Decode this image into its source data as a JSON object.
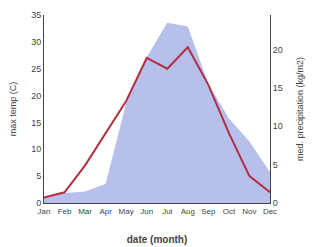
{
  "chart_data": {
    "type": "line",
    "xlabel": "date (month)",
    "ylabel": "max temp (C)",
    "y2label": "med. precipitation (kg/m2)",
    "categories": [
      "Jan",
      "Feb",
      "Mar",
      "Apr",
      "May",
      "Jun",
      "Jul",
      "Aug",
      "Sep",
      "Oct",
      "Nov",
      "Dec"
    ],
    "series": [
      {
        "type": "area",
        "axis": "y2",
        "color": "#aab4e8",
        "values": [
          0.7,
          1.3,
          1.5,
          2.5,
          13.0,
          19.0,
          23.5,
          23.0,
          15.5,
          11.0,
          8.0,
          4.0
        ]
      },
      {
        "type": "line",
        "color": "#b03040",
        "values": [
          1,
          2,
          7,
          13,
          19,
          27,
          25,
          29,
          22,
          13,
          5,
          2
        ]
      }
    ],
    "ylim": [
      0,
      35
    ],
    "yticks": [
      0,
      5,
      10,
      15,
      20,
      25,
      30,
      35
    ],
    "y2lim": [
      0,
      24.5
    ],
    "y2ticks": [
      0,
      5,
      10,
      15,
      20
    ],
    "grid": false
  }
}
